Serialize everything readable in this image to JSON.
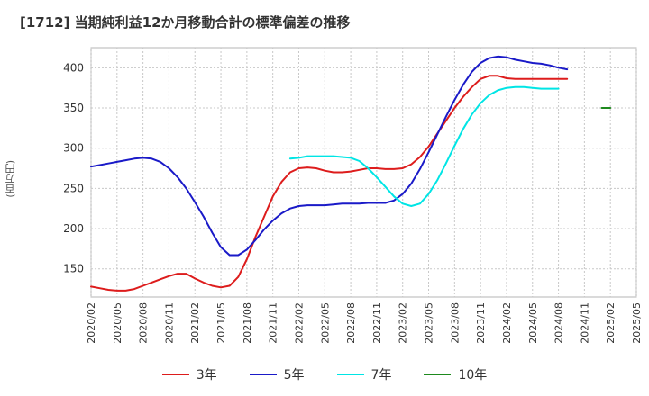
{
  "title": "[1712] 当期純利益12か月移動合計の標準偏差の推移",
  "y_unit_label": "(百万円)",
  "chart_data": {
    "type": "line",
    "title": "[1712] 当期純利益12か月移動合計の標準偏差の推移",
    "ylabel": "(百万円)",
    "xlabel": "",
    "ylim": [
      115,
      425
    ],
    "yticks": [
      150,
      200,
      250,
      300,
      350,
      400
    ],
    "xticks": [
      "2020/02",
      "2020/05",
      "2020/08",
      "2020/11",
      "2021/02",
      "2021/05",
      "2021/08",
      "2021/11",
      "2022/02",
      "2022/05",
      "2022/08",
      "2022/11",
      "2023/02",
      "2023/05",
      "2023/08",
      "2023/11",
      "2024/02",
      "2024/05",
      "2024/08",
      "2024/11",
      "2025/02",
      "2025/05"
    ],
    "x_start": "2020/02",
    "x_end": "2025/05",
    "grid": true,
    "legend_position": "bottom",
    "series": [
      {
        "name": "3年",
        "color": "#dd1c1c",
        "start": "2020/02",
        "values": [
          128,
          126,
          124,
          123,
          123,
          125,
          129,
          133,
          137,
          141,
          144,
          144,
          138,
          133,
          129,
          127,
          129,
          140,
          162,
          190,
          215,
          240,
          258,
          270,
          275,
          276,
          275,
          272,
          270,
          270,
          271,
          273,
          275,
          275,
          274,
          274,
          275,
          280,
          289,
          302,
          318,
          334,
          350,
          364,
          376,
          386,
          390,
          390,
          387,
          386,
          386,
          386,
          386,
          386,
          386,
          386
        ]
      },
      {
        "name": "5年",
        "color": "#1a1ac8",
        "start": "2020/02",
        "values": [
          277,
          279,
          281,
          283,
          285,
          287,
          288,
          287,
          283,
          275,
          264,
          250,
          233,
          215,
          195,
          177,
          167,
          167,
          174,
          186,
          199,
          210,
          219,
          225,
          228,
          229,
          229,
          229,
          230,
          231,
          231,
          231,
          232,
          232,
          232,
          235,
          243,
          256,
          274,
          295,
          317,
          339,
          360,
          379,
          395,
          406,
          412,
          414,
          413,
          410,
          408,
          406,
          405,
          403,
          400,
          398
        ]
      },
      {
        "name": "7年",
        "color": "#00e5e5",
        "start": "2022/01",
        "values": [
          287,
          288,
          290,
          290,
          290,
          290,
          289,
          288,
          284,
          275,
          264,
          252,
          240,
          231,
          228,
          231,
          243,
          260,
          281,
          303,
          324,
          342,
          356,
          366,
          372,
          375,
          376,
          376,
          375,
          374,
          374,
          374
        ]
      },
      {
        "name": "10年",
        "color": "#1e8a1e",
        "start": "2025/01",
        "values": [
          350,
          350
        ]
      }
    ]
  }
}
